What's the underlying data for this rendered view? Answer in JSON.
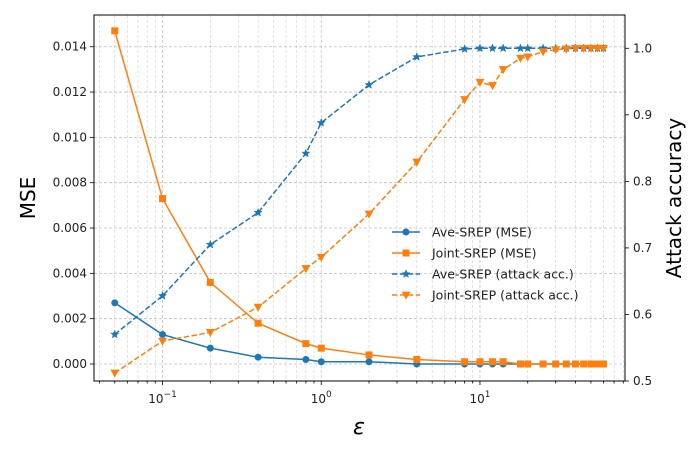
{
  "chart_data": {
    "type": "line",
    "xscale": "log",
    "xlabel": "ε",
    "ylabel": "MSE",
    "y2label": "Attack accuracy",
    "xlim": [
      0.037,
      82
    ],
    "ylim": [
      -0.00075,
      0.0154
    ],
    "y2lim": [
      0.5,
      1.05
    ],
    "grid": true,
    "legend_position": "center-right",
    "x_ticks": [
      {
        "value": 0.1,
        "base": "10",
        "exp": "−1"
      },
      {
        "value": 1,
        "base": "10",
        "exp": "0"
      },
      {
        "value": 10,
        "base": "10",
        "exp": "1"
      }
    ],
    "y_ticks": [
      {
        "value": 0.0,
        "label": "0.000"
      },
      {
        "value": 0.002,
        "label": "0.002"
      },
      {
        "value": 0.004,
        "label": "0.004"
      },
      {
        "value": 0.006,
        "label": "0.006"
      },
      {
        "value": 0.008,
        "label": "0.008"
      },
      {
        "value": 0.01,
        "label": "0.010"
      },
      {
        "value": 0.012,
        "label": "0.012"
      },
      {
        "value": 0.014,
        "label": "0.014"
      }
    ],
    "y2_ticks": [
      {
        "value": 0.5,
        "label": "0.5"
      },
      {
        "value": 0.6,
        "label": "0.6"
      },
      {
        "value": 0.7,
        "label": "0.7"
      },
      {
        "value": 0.8,
        "label": "0.8"
      },
      {
        "value": 0.9,
        "label": "0.9"
      },
      {
        "value": 1.0,
        "label": "1.0"
      }
    ],
    "series": [
      {
        "name": "Ave-SREP (MSE)",
        "axis": "left",
        "color": "#1f77b4",
        "linestyle": "solid",
        "marker": "circle",
        "x": [
          0.05,
          0.1,
          0.2,
          0.4,
          0.8,
          1,
          2,
          4,
          8,
          10,
          12,
          14,
          18,
          20,
          25,
          30,
          35,
          40,
          45,
          50,
          55,
          60
        ],
        "y": [
          0.0027,
          0.0013,
          0.0007,
          0.0003,
          0.0002,
          0.0001,
          0.0001,
          0.0,
          0.0,
          0.0,
          0.0,
          0.0,
          0.0,
          0.0,
          0.0,
          0.0,
          0.0,
          0.0,
          0.0,
          0.0,
          0.0,
          0.0
        ]
      },
      {
        "name": "Joint-SREP (MSE)",
        "axis": "left",
        "color": "#ff7f0e",
        "linestyle": "solid",
        "marker": "square",
        "x": [
          0.05,
          0.1,
          0.2,
          0.4,
          0.8,
          1,
          2,
          4,
          8,
          10,
          12,
          14,
          18,
          20,
          25,
          30,
          35,
          40,
          45,
          50,
          55,
          60
        ],
        "y": [
          0.0147,
          0.0073,
          0.0036,
          0.0018,
          0.0009,
          0.0007,
          0.0004,
          0.0002,
          0.0001,
          0.0001,
          0.0001,
          0.0001,
          0.0,
          0.0,
          0.0,
          0.0,
          0.0,
          0.0,
          0.0,
          0.0,
          0.0,
          0.0
        ]
      },
      {
        "name": "Ave-SREP (attack acc.)",
        "axis": "right",
        "color": "#1f77b4",
        "linestyle": "dashed",
        "marker": "star",
        "x": [
          0.05,
          0.1,
          0.2,
          0.4,
          0.8,
          1,
          2,
          4,
          8,
          10,
          12,
          14,
          18,
          20,
          25,
          30,
          35,
          40,
          45,
          50,
          55,
          60
        ],
        "y": [
          0.57,
          0.628,
          0.705,
          0.753,
          0.842,
          0.888,
          0.945,
          0.987,
          0.999,
          1.0,
          1.0,
          1.0,
          1.0,
          1.0,
          1.0,
          1.0,
          1.0,
          1.0,
          1.0,
          1.0,
          1.0,
          1.0
        ]
      },
      {
        "name": "Joint-SREP (attack acc.)",
        "axis": "right",
        "color": "#ff7f0e",
        "linestyle": "dashed",
        "marker": "triangle-down",
        "x": [
          0.05,
          0.1,
          0.2,
          0.4,
          0.8,
          1,
          2,
          4,
          8,
          10,
          12,
          14,
          18,
          20,
          25,
          30,
          35,
          40,
          45,
          50,
          55,
          60
        ],
        "y": [
          0.512,
          0.56,
          0.573,
          0.611,
          0.669,
          0.686,
          0.751,
          0.829,
          0.923,
          0.949,
          0.944,
          0.968,
          0.985,
          0.987,
          0.995,
          0.998,
          0.999,
          1.0,
          1.0,
          1.0,
          1.0,
          1.0
        ]
      }
    ]
  }
}
